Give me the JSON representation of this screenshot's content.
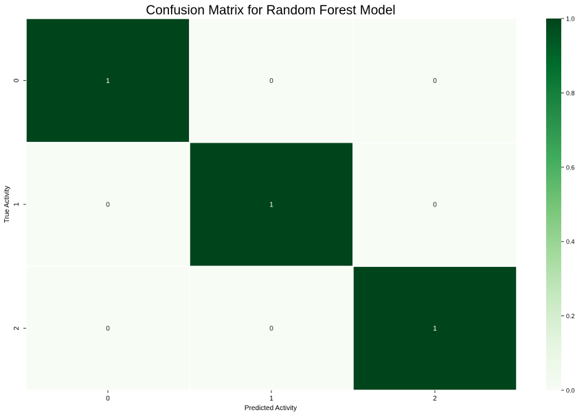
{
  "chart_data": {
    "type": "heatmap",
    "title": "Confusion Matrix for Random Forest Model",
    "xlabel": "Predicted Activity",
    "ylabel": "True Activity",
    "x_categories": [
      "0",
      "1",
      "2"
    ],
    "y_categories": [
      "0",
      "1",
      "2"
    ],
    "values": [
      [
        1,
        0,
        0
      ],
      [
        0,
        1,
        0
      ],
      [
        0,
        0,
        1
      ]
    ],
    "annotations": [
      [
        "1",
        "0",
        "0"
      ],
      [
        "0",
        "1",
        "0"
      ],
      [
        "0",
        "0",
        "1"
      ]
    ],
    "colorbar": {
      "range": [
        0.0,
        1.0
      ],
      "ticks": [
        "0.0",
        "0.2",
        "0.4",
        "0.6",
        "0.8",
        "1.0"
      ]
    },
    "colormap": {
      "name": "Greens",
      "low": "#f7fcf5",
      "high": "#00441b"
    }
  }
}
